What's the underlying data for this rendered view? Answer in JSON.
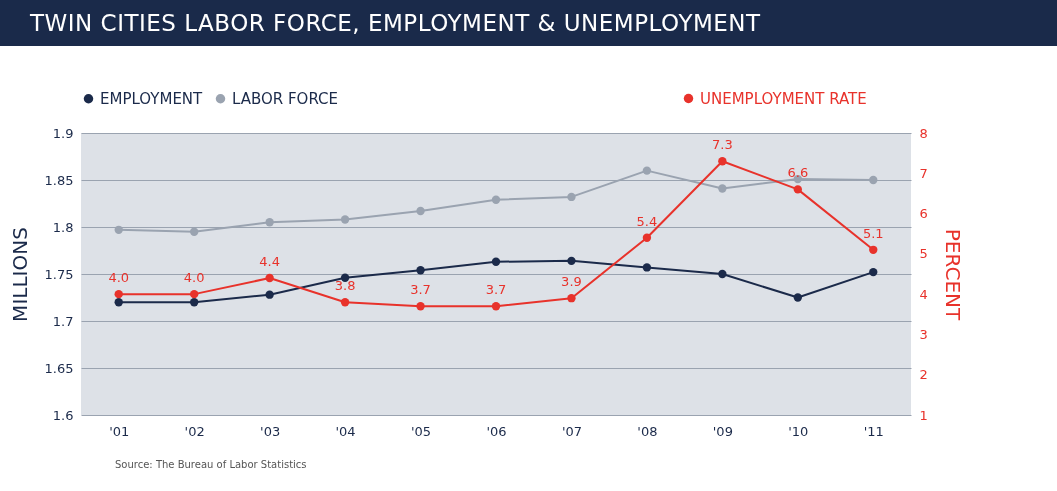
{
  "chart_data": {
    "type": "line",
    "title": "TWIN CITIES LABOR FORCE, EMPLOYMENT & UNEMPLOYMENT",
    "categories": [
      "'01",
      "'02",
      "'03",
      "'04",
      "'05",
      "'06",
      "'07",
      "'08",
      "'09",
      "'10",
      "'11"
    ],
    "series": [
      {
        "name": "EMPLOYMENT",
        "color": "#1b2a4a",
        "values": [
          1.72,
          1.72,
          1.728,
          1.746,
          1.754,
          1.763,
          1.764,
          1.757,
          1.75,
          1.725,
          1.752
        ]
      },
      {
        "name": "LABOR FORCE",
        "color": "#9aa3b0",
        "values": [
          1.797,
          1.795,
          1.805,
          1.808,
          1.817,
          1.829,
          1.832,
          1.86,
          1.841,
          1.851,
          1.85
        ]
      },
      {
        "name": "UNEMPLOYMENT RATE",
        "color": "#e8322b",
        "axis": "y2",
        "values": [
          4.0,
          4.0,
          4.4,
          3.8,
          3.7,
          3.7,
          3.9,
          5.4,
          7.3,
          6.6,
          5.1
        ],
        "value_labels": [
          "4.0",
          "4.0",
          "4.4",
          "3.8",
          "3.7",
          "3.7",
          "3.9",
          "5.4",
          "7.3",
          "6.6",
          "5.1"
        ]
      }
    ],
    "ylabel": "MILLIONS",
    "y2label": "PERCENT",
    "ylim": [
      1.6,
      1.9
    ],
    "yticks": [
      1.6,
      1.65,
      1.7,
      1.75,
      1.8,
      1.85,
      1.9
    ],
    "y2lim": [
      1,
      8
    ],
    "y2ticks": [
      1,
      2,
      3,
      4,
      5,
      6,
      7,
      8
    ],
    "grid": "y",
    "marker": "circle",
    "legend": "top",
    "annotations": [
      "Source: The Bureau of Labor Statistics"
    ]
  }
}
